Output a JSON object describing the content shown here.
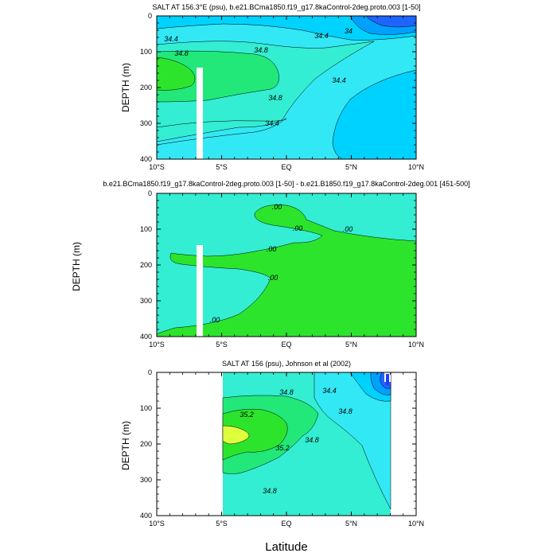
{
  "figure": {
    "xlabel": "Latitude",
    "colors": {
      "base": "#33E8F5",
      "level_34_4": "#00D2FF",
      "level_34_0": "#00A0FF",
      "level_33_6": "#1E64FF",
      "level_34_8": "#33EED2",
      "level_35_2": "#22E87A",
      "level_35_6": "#2DE42D",
      "level_36_0": "#DEFF3C",
      "diff_neg": "#33EED2",
      "diff_pos": "#2DE42D",
      "mask": "#FFFFFF"
    }
  },
  "chart_data": [
    {
      "type": "contour",
      "title": "SALT AT 156.3°E (psu), b.e21.BCma1850.f19_g17.8kaControl-2deg.proto.003 [1-50]",
      "xlabel": "",
      "ylabel": "DEPTH (m)",
      "xlim": [
        -10,
        10
      ],
      "ylim": [
        400,
        0
      ],
      "xticks": [
        -10,
        -5,
        0,
        5,
        10
      ],
      "xtick_labels": [
        "10°S",
        "5°S",
        "EQ",
        "5°N",
        "10°N"
      ],
      "yticks": [
        0,
        100,
        200,
        300,
        400
      ],
      "ytick_labels": [
        "0",
        "100",
        "200",
        "300",
        "400"
      ],
      "contour_labels": [
        "34.4",
        "34.8",
        "34.8",
        "34.4",
        "34",
        "34.4",
        "34.8",
        "34.4"
      ],
      "mask_lat": [
        -6.9,
        -6.4
      ],
      "mask_depth": [
        145,
        400
      ]
    },
    {
      "type": "contour",
      "title": "b.e21.BCma1850.f19_g17.8kaControl-2deg.proto.003 [1-50] - b.e21.B1850.f19_g17.8kaControl-2deg.001 [451-500]",
      "xlabel": "",
      "ylabel": "DEPTH (m)",
      "xlim": [
        -10,
        10
      ],
      "ylim": [
        400,
        0
      ],
      "xticks": [
        -10,
        -5,
        0,
        5,
        10
      ],
      "xtick_labels": [
        "10°S",
        "5°S",
        "EQ",
        "5°N",
        "10°N"
      ],
      "yticks": [
        0,
        100,
        200,
        300,
        400
      ],
      "ytick_labels": [
        "0",
        "100",
        "200",
        "300",
        "400"
      ],
      "contour_labels": [
        ".00",
        ".00",
        ".00",
        ".00",
        ".00",
        ".00"
      ],
      "mask_lat": [
        -6.9,
        -6.4
      ],
      "mask_depth": [
        145,
        400
      ]
    },
    {
      "type": "contour",
      "title": "SALT AT 156 (psu), Johnson et al (2002)",
      "xlabel": "",
      "ylabel": "DEPTH (m)",
      "xlim": [
        -10,
        10
      ],
      "ylim": [
        400,
        0
      ],
      "xticks": [
        -10,
        -5,
        0,
        5,
        10
      ],
      "xtick_labels": [
        "10°S",
        "5°S",
        "EQ",
        "5°N",
        "10°N"
      ],
      "yticks": [
        0,
        100,
        200,
        300,
        400
      ],
      "ytick_labels": [
        "0",
        "100",
        "200",
        "300",
        "400"
      ],
      "contour_labels": [
        "34.8",
        "34.4",
        "35.2",
        "34.8",
        "35.2",
        "34.8",
        "34.8"
      ],
      "data_lat_range": [
        -5,
        8
      ]
    }
  ]
}
